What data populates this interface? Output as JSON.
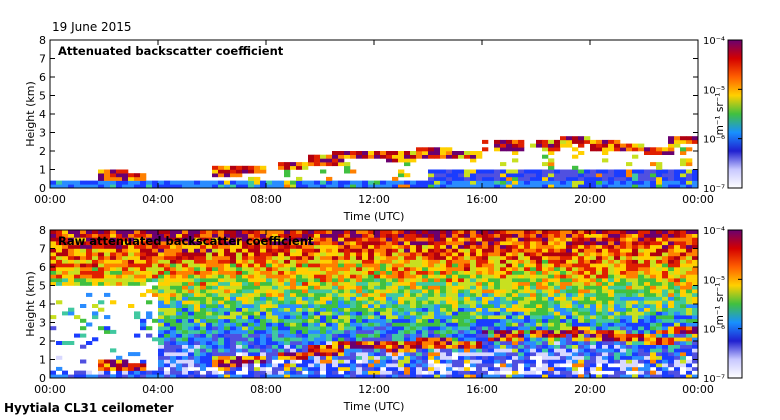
{
  "date": "19 June 2015",
  "footer": "Hyytiala CL31 ceilometer",
  "colorbar": {
    "unit_label": "m⁻¹ sr⁻¹",
    "ticks": [
      "10⁻⁴",
      "10⁻⁵",
      "10⁻⁶",
      "10⁻⁷"
    ],
    "colors": [
      "#6a0070",
      "#d40000",
      "#ff6000",
      "#ffd000",
      "#40c040",
      "#1890ff",
      "#2020d0",
      "#c8c8ff",
      "#ffffff"
    ]
  },
  "chart_data": [
    {
      "type": "heatmap",
      "title": "Attenuated backscatter coefficient",
      "xlabel": "Time (UTC)",
      "ylabel": "Height (km)",
      "xticks": [
        "00:00",
        "04:00",
        "08:00",
        "12:00",
        "16:00",
        "20:00",
        "00:00"
      ],
      "yticks": [
        "0",
        "1",
        "2",
        "3",
        "4",
        "5",
        "6",
        "7",
        "8"
      ],
      "xlim_hours": [
        0,
        24
      ],
      "ylim_km": [
        0,
        8
      ],
      "color_scale_log10": [
        -7,
        -4
      ]
    },
    {
      "type": "heatmap",
      "title": "Raw attenuated backscatter coefficient",
      "xlabel": "Time (UTC)",
      "ylabel": "Height (km)",
      "xticks": [
        "00:00",
        "04:00",
        "08:00",
        "12:00",
        "16:00",
        "20:00",
        "00:00"
      ],
      "yticks": [
        "0",
        "1",
        "2",
        "3",
        "4",
        "5",
        "6",
        "7",
        "8"
      ],
      "xlim_hours": [
        0,
        24
      ],
      "ylim_km": [
        0,
        8
      ],
      "color_scale_log10": [
        -7,
        -4
      ]
    }
  ]
}
